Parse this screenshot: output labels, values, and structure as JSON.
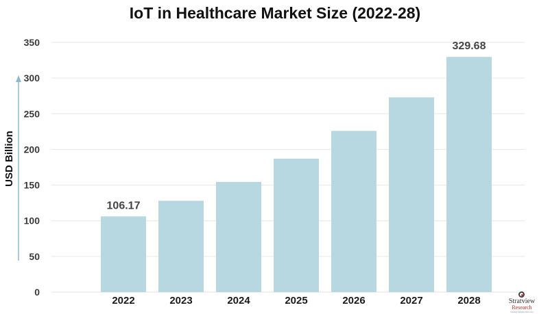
{
  "chart_data": {
    "type": "bar",
    "title": "IoT in Healthcare Market Size (2022-28)",
    "xlabel": "",
    "ylabel": "USD Billion",
    "categories": [
      "2022",
      "2023",
      "2024",
      "2025",
      "2026",
      "2027",
      "2028"
    ],
    "values": [
      106.17,
      128,
      154.5,
      187,
      226,
      273,
      329.68
    ],
    "data_labels": [
      "106.17",
      "",
      "",
      "",
      "",
      "",
      "329.68"
    ],
    "ylim": [
      0,
      350
    ],
    "yticks": [
      0,
      50,
      100,
      150,
      200,
      250,
      300,
      350
    ],
    "grid": true,
    "bar_color": "#b7d7e1",
    "grid_color": "#e6e6e6",
    "axis_arrow_color": "#8fb9cd"
  },
  "logo": {
    "line1": "Stratview",
    "line2": "Research",
    "line3": "Strategic Insights Delivered"
  }
}
